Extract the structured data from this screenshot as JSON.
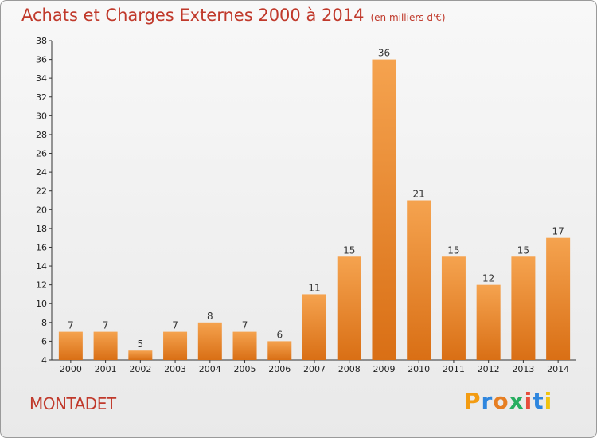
{
  "chart_data": {
    "type": "bar",
    "title": "Achats et Charges Externes 2000 à 2014",
    "subtitle": "(en milliers d'€)",
    "categories": [
      "2000",
      "2001",
      "2002",
      "2003",
      "2004",
      "2005",
      "2006",
      "2007",
      "2008",
      "2009",
      "2010",
      "2011",
      "2012",
      "2013",
      "2014"
    ],
    "values": [
      7,
      7,
      5,
      7,
      8,
      7,
      6,
      11,
      15,
      36,
      21,
      15,
      12,
      15,
      17
    ],
    "ylim": [
      4,
      38
    ],
    "yticks": [
      4,
      6,
      8,
      10,
      12,
      14,
      16,
      18,
      20,
      22,
      24,
      26,
      28,
      30,
      32,
      34,
      36,
      38
    ],
    "grid": false,
    "bar_color_top": "#f5a34f",
    "bar_color_bottom": "#d96f15"
  },
  "place_name": "MONTADET",
  "logo": {
    "letters": [
      "P",
      "r",
      "o",
      "x",
      "i",
      "t",
      "i"
    ],
    "colors": [
      "#f39c12",
      "#2e86de",
      "#e67e22",
      "#27ae60",
      "#e74c3c",
      "#2e86de",
      "#f1c40f"
    ]
  },
  "colors": {
    "title": "#c0392b"
  }
}
